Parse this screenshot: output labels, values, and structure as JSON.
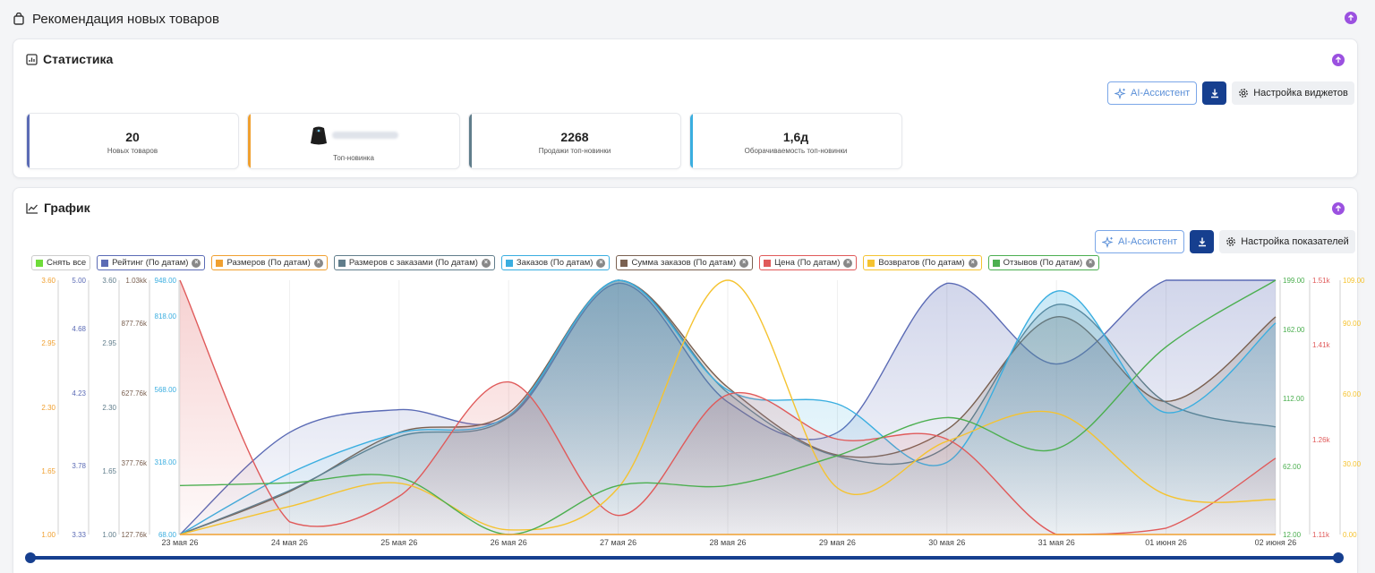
{
  "page": {
    "title": "Рекомендация новых товаров"
  },
  "stats": {
    "title": "Статистика",
    "ai_label": "AI-Ассистент",
    "settings_label": "Настройка виджетов",
    "kpis": [
      {
        "value": "20",
        "label": "Новых товаров",
        "color": "#5b6bb5"
      },
      {
        "value": "",
        "label": "Топ-новинка",
        "color": "#f0a030"
      },
      {
        "value": "2268",
        "label": "Продажи топ-новинки",
        "color": "#607d8b"
      },
      {
        "value": "1,6д",
        "label": "Оборачиваемость топ-новинки",
        "color": "#3aaee0"
      }
    ]
  },
  "graph": {
    "title": "График",
    "ai_label": "AI-Ассистент",
    "settings_label": "Настройка показателей",
    "clear_all_label": "Снять все",
    "clear_all_color": "#6fdc3a"
  },
  "chart_data": {
    "type": "line",
    "x": [
      "23 мая 26",
      "24 мая 26",
      "25 мая 26",
      "26 мая 26",
      "27 мая 26",
      "28 мая 26",
      "29 мая 26",
      "30 мая 26",
      "31 мая 26",
      "01 июня 26",
      "02 июня 26"
    ],
    "series": [
      {
        "name": "Рейтинг (По датам)",
        "color": "#5b6bb5",
        "fill": true,
        "ylim": [
          3.33,
          5.0
        ],
        "ticks": [
          "5.00",
          "4.68",
          "4.23",
          "3.78",
          "3.33"
        ],
        "values": [
          3.33,
          4.0,
          4.15,
          4.1,
          4.98,
          4.2,
          4.0,
          4.98,
          4.45,
          5.0,
          5.0
        ]
      },
      {
        "name": "Размеров (По датам)",
        "color": "#f0a030",
        "fill": false,
        "ylim": [
          1.0,
          3.6
        ],
        "ticks": [
          "3.60",
          "2.95",
          "2.30",
          "1.65",
          "1.00"
        ],
        "values": [
          1.0,
          1.0,
          1.0,
          1.0,
          1.0,
          1.0,
          1.0,
          1.0,
          1.0,
          1.0,
          1.0
        ]
      },
      {
        "name": "Размеров с заказами (По датам)",
        "color": "#607d8b",
        "fill": true,
        "ylim": [
          1.0,
          3.6
        ],
        "ticks": [
          "3.60",
          "2.95",
          "2.30",
          "1.65",
          "1.00"
        ],
        "values": [
          1.0,
          1.45,
          2.0,
          2.2,
          3.6,
          2.45,
          1.8,
          1.9,
          3.35,
          2.35,
          2.1
        ]
      },
      {
        "name": "Заказов (По датам)",
        "color": "#3aaee0",
        "fill": true,
        "ylim": [
          68.0,
          948.0
        ],
        "ticks": [
          "948.00",
          "818.00",
          "568.00",
          "318.00",
          "68.00"
        ],
        "values": [
          68,
          280,
          420,
          480,
          948,
          568,
          520,
          318,
          910,
          490,
          800
        ]
      },
      {
        "name": "Сумма заказов (По датам)",
        "color": "#7a6050",
        "fill": true,
        "ylim": [
          127760,
          1030000
        ],
        "ticks": [
          "1.03kk",
          "877.76k",
          "627.76k",
          "377.76k",
          "127.76k"
        ],
        "values": [
          127760,
          280000,
          490000,
          560000,
          1030000,
          650000,
          410000,
          500000,
          900000,
          600000,
          900000
        ]
      },
      {
        "name": "Цена (По датам)",
        "color": "#e05a5a",
        "fill": true,
        "ylim": [
          1110,
          1510
        ],
        "ticks": [
          "1.51k",
          "1.41k",
          "1.26k",
          "1.11k"
        ],
        "values": [
          1510,
          1130,
          1170,
          1350,
          1140,
          1330,
          1260,
          1260,
          1110,
          1120,
          1230
        ]
      },
      {
        "name": "Возвратов (По датам)",
        "color": "#f5c330",
        "fill": false,
        "ylim": [
          0.0,
          109.0
        ],
        "ticks": [
          "109.00",
          "90.00",
          "60.00",
          "30.00",
          "0.00"
        ],
        "values": [
          0,
          12,
          22,
          2,
          20,
          109,
          20,
          40,
          52,
          17,
          15
        ]
      },
      {
        "name": "Отзывов (По датам)",
        "color": "#4caf50",
        "fill": false,
        "ylim": [
          12.0,
          199.0
        ],
        "ticks": [
          "199.00",
          "162.00",
          "112.00",
          "62.00",
          "12.00"
        ],
        "values": [
          48,
          50,
          54,
          12,
          48,
          48,
          70,
          98,
          75,
          150,
          199
        ]
      }
    ]
  }
}
